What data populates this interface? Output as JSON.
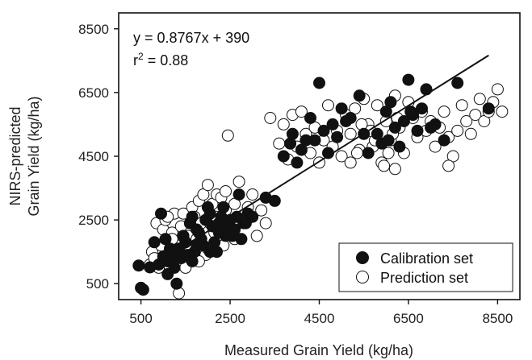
{
  "chart_data": {
    "type": "scatter",
    "title": "",
    "xlabel": "Measured Grain Yield (kg/ha)",
    "ylabel_line1": "NIRS-predicted",
    "ylabel_line2": "Grain Yield (kg/ha)",
    "xlim": [
      0,
      9000
    ],
    "ylim": [
      0,
      9000
    ],
    "xticks": [
      500,
      2500,
      4500,
      6500,
      8500
    ],
    "yticks": [
      500,
      2500,
      4500,
      6500,
      8500
    ],
    "xtick_labels": [
      "500",
      "2500",
      "4500",
      "6500",
      "8500"
    ],
    "ytick_labels": [
      "500",
      "2500",
      "4500",
      "6500",
      "8500"
    ],
    "grid": false,
    "legend_position": "bottom-right",
    "annotations": {
      "equation": "y = 0.8767x + 390",
      "r2_prefix": "r",
      "r2_exp": "2",
      "r2_value": " = 0.88"
    },
    "fit_line": {
      "slope": 0.8767,
      "intercept": 390,
      "x_range": [
        1300,
        8300
      ]
    },
    "series": [
      {
        "name": "Calibration set",
        "marker": "filled",
        "points": [
          [
            500,
            370
          ],
          [
            550,
            310
          ],
          [
            450,
            1070
          ],
          [
            700,
            1010
          ],
          [
            900,
            1100
          ],
          [
            1000,
            1350
          ],
          [
            1100,
            1200
          ],
          [
            800,
            1800
          ],
          [
            950,
            2700
          ],
          [
            1050,
            1900
          ],
          [
            1150,
            1600
          ],
          [
            1250,
            1000
          ],
          [
            1300,
            500
          ],
          [
            1400,
            1300
          ],
          [
            1500,
            1800
          ],
          [
            1600,
            2400
          ],
          [
            1700,
            1500
          ],
          [
            1800,
            2100
          ],
          [
            1900,
            1700
          ],
          [
            2000,
            2900
          ],
          [
            2100,
            2300
          ],
          [
            2200,
            1500
          ],
          [
            2300,
            2600
          ],
          [
            2400,
            2000
          ],
          [
            2500,
            2500
          ],
          [
            2600,
            2200
          ],
          [
            2700,
            3300
          ],
          [
            2800,
            2400
          ],
          [
            2900,
            2700
          ],
          [
            3000,
            2600
          ],
          [
            3300,
            3200
          ],
          [
            3500,
            3100
          ],
          [
            1200,
            1300
          ],
          [
            1350,
            1600
          ],
          [
            1450,
            2000
          ],
          [
            1550,
            1400
          ],
          [
            1650,
            2600
          ],
          [
            1750,
            2200
          ],
          [
            1850,
            1900
          ],
          [
            1950,
            2500
          ],
          [
            2050,
            2700
          ],
          [
            2150,
            1800
          ],
          [
            2250,
            2100
          ],
          [
            2350,
            2900
          ],
          [
            2450,
            2300
          ],
          [
            2550,
            2000
          ],
          [
            2650,
            2600
          ],
          [
            2750,
            1900
          ],
          [
            2850,
            2400
          ],
          [
            1100,
            800
          ],
          [
            1250,
            1500
          ],
          [
            1650,
            1200
          ],
          [
            1750,
            1700
          ],
          [
            2050,
            1500
          ],
          [
            2250,
            2400
          ],
          [
            3700,
            4500
          ],
          [
            3850,
            4900
          ],
          [
            3900,
            5200
          ],
          [
            4000,
            4300
          ],
          [
            4100,
            4700
          ],
          [
            4200,
            5000
          ],
          [
            4300,
            5700
          ],
          [
            4500,
            6800
          ],
          [
            4600,
            5300
          ],
          [
            4700,
            4600
          ],
          [
            4800,
            5500
          ],
          [
            4900,
            5100
          ],
          [
            5000,
            6000
          ],
          [
            5200,
            5700
          ],
          [
            5400,
            6400
          ],
          [
            5600,
            4600
          ],
          [
            5800,
            5200
          ],
          [
            5900,
            4900
          ],
          [
            6000,
            5900
          ],
          [
            6100,
            6200
          ],
          [
            6200,
            5400
          ],
          [
            6300,
            4800
          ],
          [
            6400,
            5600
          ],
          [
            6500,
            6900
          ],
          [
            6600,
            5800
          ],
          [
            6700,
            5300
          ],
          [
            6900,
            6600
          ],
          [
            7000,
            5400
          ],
          [
            7300,
            5000
          ],
          [
            7600,
            6800
          ],
          [
            8300,
            6000
          ],
          [
            4400,
            5000
          ],
          [
            5100,
            5600
          ],
          [
            5500,
            5200
          ],
          [
            6050,
            5000
          ],
          [
            6550,
            5900
          ],
          [
            6800,
            6000
          ],
          [
            7100,
            5500
          ]
        ]
      },
      {
        "name": "Prediction set",
        "marker": "open",
        "points": [
          [
            700,
            1100
          ],
          [
            750,
            1500
          ],
          [
            800,
            1300
          ],
          [
            850,
            2400
          ],
          [
            900,
            1000
          ],
          [
            950,
            1700
          ],
          [
            1000,
            2200
          ],
          [
            1050,
            2500
          ],
          [
            1100,
            1400
          ],
          [
            1150,
            1000
          ],
          [
            1200,
            2100
          ],
          [
            1250,
            2700
          ],
          [
            1300,
            1700
          ],
          [
            1350,
            1200
          ],
          [
            1400,
            2300
          ],
          [
            1450,
            2700
          ],
          [
            1500,
            1000
          ],
          [
            1550,
            2000
          ],
          [
            1600,
            1400
          ],
          [
            1650,
            2900
          ],
          [
            1700,
            2600
          ],
          [
            1750,
            1900
          ],
          [
            1800,
            3100
          ],
          [
            1850,
            2400
          ],
          [
            1900,
            3300
          ],
          [
            1950,
            1400
          ],
          [
            2000,
            3600
          ],
          [
            2050,
            2400
          ],
          [
            2100,
            3000
          ],
          [
            2150,
            2100
          ],
          [
            2200,
            3300
          ],
          [
            2250,
            1800
          ],
          [
            2300,
            3200
          ],
          [
            2350,
            1700
          ],
          [
            2400,
            2800
          ],
          [
            2450,
            5150
          ],
          [
            2500,
            2200
          ],
          [
            2600,
            3000
          ],
          [
            2700,
            3700
          ],
          [
            2800,
            2500
          ],
          [
            2900,
            2900
          ],
          [
            3000,
            3300
          ],
          [
            3100,
            2000
          ],
          [
            3200,
            2800
          ],
          [
            3300,
            2400
          ],
          [
            3400,
            5700
          ],
          [
            1350,
            200
          ],
          [
            1100,
            2600
          ],
          [
            1200,
            1900
          ],
          [
            1400,
            1500
          ],
          [
            1600,
            2400
          ],
          [
            1800,
            1200
          ],
          [
            2000,
            1600
          ],
          [
            2200,
            2600
          ],
          [
            2400,
            3400
          ],
          [
            2600,
            1900
          ],
          [
            3600,
            4900
          ],
          [
            3700,
            5500
          ],
          [
            3800,
            4400
          ],
          [
            3900,
            5800
          ],
          [
            4000,
            4800
          ],
          [
            4100,
            5900
          ],
          [
            4200,
            5200
          ],
          [
            4300,
            4600
          ],
          [
            4400,
            5400
          ],
          [
            4500,
            4300
          ],
          [
            4600,
            5000
          ],
          [
            4700,
            6100
          ],
          [
            4800,
            4800
          ],
          [
            4900,
            5300
          ],
          [
            5000,
            4500
          ],
          [
            5100,
            5800
          ],
          [
            5200,
            5200
          ],
          [
            5300,
            6000
          ],
          [
            5400,
            4700
          ],
          [
            5500,
            6300
          ],
          [
            5600,
            5500
          ],
          [
            5700,
            4800
          ],
          [
            5800,
            6100
          ],
          [
            5900,
            4300
          ],
          [
            6000,
            5600
          ],
          [
            6100,
            5000
          ],
          [
            6200,
            6400
          ],
          [
            6300,
            5400
          ],
          [
            6400,
            4600
          ],
          [
            6500,
            6200
          ],
          [
            6600,
            5700
          ],
          [
            6700,
            5100
          ],
          [
            6800,
            5900
          ],
          [
            6900,
            5300
          ],
          [
            7000,
            5600
          ],
          [
            7100,
            4800
          ],
          [
            7200,
            5400
          ],
          [
            7300,
            5900
          ],
          [
            7400,
            5100
          ],
          [
            7500,
            4500
          ],
          [
            7600,
            5300
          ],
          [
            7700,
            6100
          ],
          [
            7800,
            5600
          ],
          [
            7900,
            5200
          ],
          [
            8000,
            5800
          ],
          [
            8100,
            6300
          ],
          [
            8200,
            5600
          ],
          [
            8300,
            5900
          ],
          [
            8400,
            6200
          ],
          [
            8500,
            6600
          ],
          [
            8600,
            5900
          ],
          [
            7400,
            4200
          ],
          [
            5200,
            4300
          ],
          [
            6200,
            4100
          ],
          [
            5950,
            4200
          ],
          [
            6050,
            4600
          ],
          [
            6150,
            5200
          ],
          [
            6250,
            5700
          ],
          [
            5750,
            5000
          ],
          [
            5650,
            5300
          ],
          [
            5450,
            5500
          ],
          [
            5350,
            4600
          ]
        ]
      }
    ]
  }
}
